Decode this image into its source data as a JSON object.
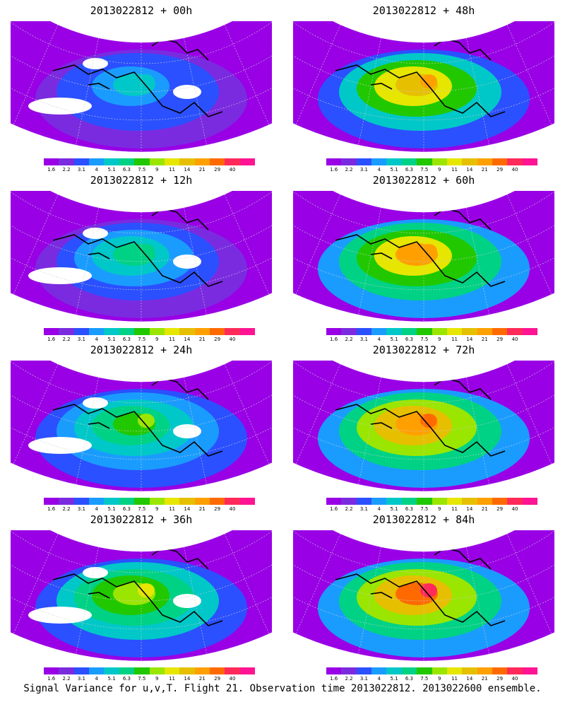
{
  "panels": [
    {
      "title": "2013022812 + 00h",
      "level": 0.3,
      "gaps": true
    },
    {
      "title": "2013022812 + 48h",
      "level": 0.75,
      "gaps": false
    },
    {
      "title": "2013022812 + 12h",
      "level": 0.42,
      "gaps": true
    },
    {
      "title": "2013022812 + 60h",
      "level": 0.8,
      "gaps": false
    },
    {
      "title": "2013022812 + 24h",
      "level": 0.52,
      "gaps": true
    },
    {
      "title": "2013022812 + 72h",
      "level": 0.85,
      "gaps": false
    },
    {
      "title": "2013022812 + 36h",
      "level": 0.62,
      "gaps": true
    },
    {
      "title": "2013022812 + 84h",
      "level": 0.92,
      "gaps": false
    }
  ],
  "colorbar": {
    "labels": [
      "1.6",
      "2.2",
      "3.1",
      "4",
      "5.1",
      "6.3",
      "7.5",
      "9",
      "11",
      "14",
      "21",
      "29",
      "40"
    ],
    "colors": [
      "#9900e6",
      "#7a2be0",
      "#2b50ff",
      "#1a9cff",
      "#00c8c8",
      "#00d285",
      "#21c800",
      "#9ae600",
      "#e6e600",
      "#e6c000",
      "#ffa000",
      "#ff6a00",
      "#ff2a5a",
      "#ff1493"
    ]
  },
  "footer": "Signal Variance for u,v,T. Flight 21. Observation time 2013022812. 2013022600 ensemble."
}
